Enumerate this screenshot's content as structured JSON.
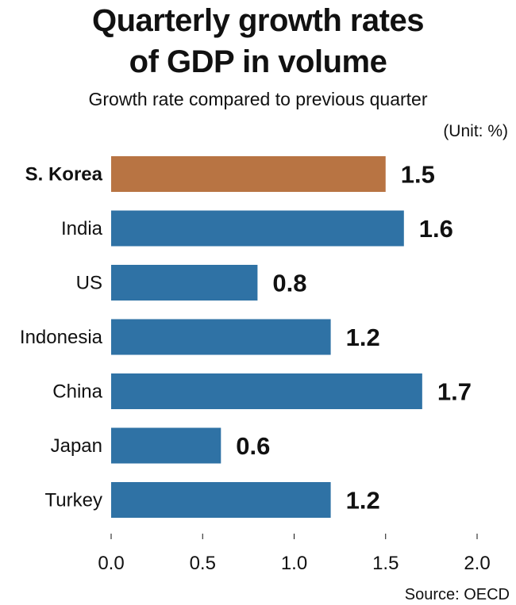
{
  "header": {
    "title_line1": "Quarterly growth rates",
    "title_line2": "of GDP in volume",
    "subtitle": "Growth rate compared to previous quarter",
    "unit": "(Unit: %)"
  },
  "footer": {
    "source": "Source: OECD"
  },
  "chart_data": {
    "type": "bar",
    "orientation": "horizontal",
    "title": "Quarterly growth rates of GDP in volume",
    "subtitle": "Growth rate compared to previous quarter",
    "unit": "(Unit: %)",
    "categories": [
      "S. Korea",
      "India",
      "US",
      "Indonesia",
      "China",
      "Japan",
      "Turkey"
    ],
    "values": [
      1.5,
      1.6,
      0.8,
      1.2,
      1.7,
      0.6,
      1.2
    ],
    "value_labels": [
      "1.5",
      "1.6",
      "0.8",
      "1.2",
      "1.7",
      "0.6",
      "1.2"
    ],
    "highlight_category": "S. Korea",
    "xlim": [
      0,
      2
    ],
    "xticks": [
      0,
      0.5,
      1,
      1.5,
      2
    ],
    "xtick_labels": [
      "0.0",
      "0.5",
      "1.0",
      "1.5",
      "2.0"
    ],
    "grid": false,
    "legend": "none",
    "colors": {
      "highlight": "#b87443",
      "default": "#2f72a5",
      "text": "#111111",
      "axis": "#111111"
    },
    "source": "Source: OECD"
  }
}
